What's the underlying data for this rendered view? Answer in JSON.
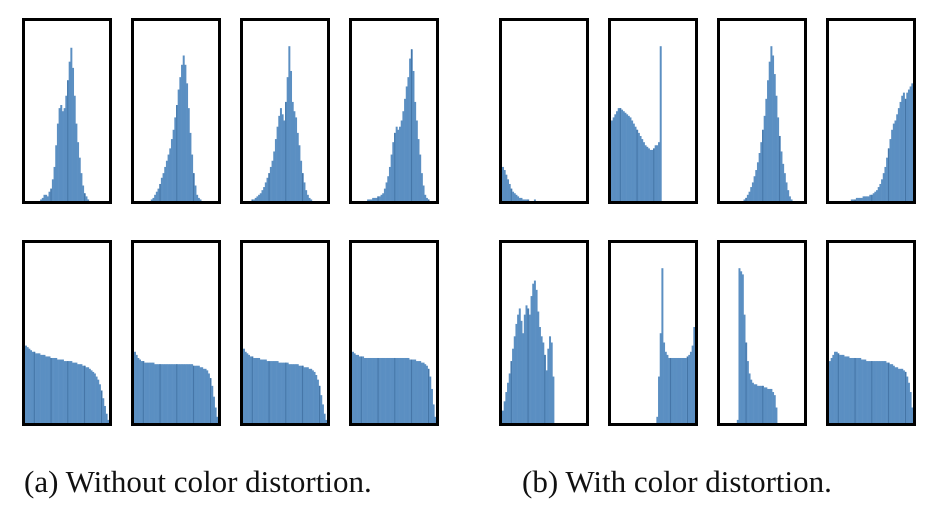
{
  "captions": {
    "a": "(a) Without color distortion.",
    "b": "(b) With color distortion."
  },
  "colors": {
    "bar": "#5b8fc2",
    "bar_edge": "#3f6fa0",
    "frame": "#000000"
  },
  "chart_data": [
    {
      "group": "a",
      "row": "top",
      "type": "bar",
      "histograms": [
        {
          "values": [
            0,
            0,
            0,
            0,
            0,
            0,
            0,
            0,
            0,
            1,
            2,
            4,
            4,
            3,
            6,
            8,
            14,
            22,
            36,
            50,
            60,
            62,
            58,
            60,
            68,
            78,
            90,
            99,
            86,
            68,
            50,
            38,
            28,
            18,
            10,
            5,
            3,
            1,
            0,
            0,
            0,
            0,
            0,
            0,
            0,
            0,
            0,
            0,
            0,
            0
          ]
        },
        {
          "values": [
            0,
            0,
            0,
            0,
            0,
            0,
            0,
            0,
            0,
            0,
            1,
            2,
            4,
            6,
            8,
            11,
            15,
            18,
            22,
            26,
            30,
            34,
            40,
            46,
            54,
            62,
            72,
            80,
            88,
            94,
            88,
            76,
            60,
            44,
            30,
            18,
            10,
            4,
            2,
            1,
            0,
            0,
            0,
            0,
            0,
            0,
            0,
            0,
            0,
            0
          ]
        },
        {
          "values": [
            0,
            0,
            0,
            0,
            0,
            1,
            1,
            2,
            3,
            4,
            5,
            7,
            9,
            12,
            15,
            18,
            22,
            26,
            32,
            40,
            48,
            55,
            60,
            56,
            52,
            64,
            80,
            100,
            84,
            64,
            58,
            54,
            44,
            36,
            26,
            18,
            12,
            7,
            4,
            2,
            1,
            0,
            0,
            0,
            0,
            0,
            0,
            0,
            0,
            0
          ]
        },
        {
          "values": [
            0,
            0,
            0,
            0,
            0,
            0,
            0,
            0,
            0,
            1,
            1,
            1,
            2,
            2,
            2,
            3,
            3,
            4,
            5,
            8,
            12,
            16,
            22,
            30,
            38,
            44,
            48,
            46,
            48,
            52,
            58,
            66,
            74,
            80,
            92,
            98,
            84,
            64,
            52,
            40,
            30,
            18,
            10,
            4,
            2,
            1,
            0,
            0,
            0,
            0
          ]
        }
      ]
    },
    {
      "group": "a",
      "row": "bottom",
      "type": "bar",
      "histograms": [
        {
          "values": [
            50,
            49,
            48,
            47,
            46,
            46,
            45,
            45,
            45,
            44,
            44,
            44,
            43,
            43,
            43,
            42,
            42,
            42,
            42,
            41,
            41,
            41,
            41,
            40,
            40,
            40,
            40,
            40,
            39,
            39,
            39,
            38,
            38,
            38,
            37,
            37,
            36,
            36,
            35,
            34,
            33,
            32,
            30,
            28,
            25,
            21,
            16,
            11,
            6,
            2
          ]
        },
        {
          "values": [
            46,
            44,
            42,
            41,
            40,
            40,
            39,
            39,
            39,
            39,
            39,
            39,
            38,
            38,
            38,
            38,
            38,
            38,
            38,
            38,
            38,
            38,
            38,
            38,
            38,
            38,
            38,
            38,
            38,
            38,
            38,
            38,
            38,
            38,
            38,
            37,
            37,
            37,
            37,
            36,
            36,
            35,
            35,
            34,
            32,
            29,
            24,
            17,
            10,
            4
          ]
        },
        {
          "values": [
            48,
            46,
            45,
            44,
            43,
            43,
            42,
            42,
            42,
            42,
            41,
            41,
            41,
            41,
            40,
            40,
            40,
            40,
            40,
            40,
            40,
            39,
            39,
            39,
            39,
            39,
            39,
            38,
            38,
            38,
            38,
            38,
            38,
            37,
            37,
            37,
            36,
            36,
            36,
            35,
            35,
            34,
            33,
            31,
            28,
            24,
            18,
            12,
            6,
            2
          ]
        },
        {
          "values": [
            46,
            45,
            44,
            44,
            43,
            43,
            43,
            42,
            42,
            42,
            42,
            42,
            42,
            42,
            42,
            42,
            42,
            42,
            42,
            42,
            42,
            42,
            42,
            42,
            42,
            42,
            42,
            42,
            42,
            42,
            42,
            42,
            42,
            42,
            41,
            41,
            41,
            41,
            40,
            40,
            40,
            39,
            39,
            38,
            37,
            35,
            30,
            22,
            12,
            4
          ]
        }
      ]
    },
    {
      "group": "b",
      "row": "top",
      "type": "bar",
      "histograms": [
        {
          "values": [
            22,
            20,
            17,
            14,
            11,
            8,
            6,
            5,
            4,
            3,
            2,
            2,
            1,
            1,
            1,
            1,
            0,
            0,
            0,
            1,
            0,
            0,
            0,
            0,
            0,
            0,
            0,
            0,
            0,
            0,
            0,
            0,
            0,
            0,
            0,
            0,
            0,
            0,
            0,
            0,
            0,
            0,
            0,
            0,
            0,
            0,
            0,
            0,
            0,
            0
          ]
        },
        {
          "values": [
            52,
            54,
            56,
            58,
            60,
            60,
            59,
            58,
            57,
            56,
            55,
            54,
            52,
            50,
            48,
            46,
            44,
            42,
            40,
            38,
            36,
            35,
            34,
            33,
            33,
            34,
            36,
            36,
            38,
            100,
            0,
            0,
            0,
            0,
            0,
            0,
            0,
            0,
            0,
            0,
            0,
            0,
            0,
            0,
            0,
            0,
            0,
            0,
            0,
            0
          ]
        },
        {
          "values": [
            0,
            0,
            0,
            0,
            0,
            0,
            0,
            0,
            0,
            0,
            0,
            0,
            0,
            0,
            1,
            2,
            4,
            6,
            9,
            12,
            16,
            20,
            25,
            31,
            38,
            46,
            55,
            66,
            78,
            90,
            100,
            94,
            82,
            68,
            54,
            42,
            32,
            24,
            18,
            12,
            7,
            3,
            1,
            0,
            0,
            0,
            0,
            0,
            0,
            0
          ]
        },
        {
          "values": [
            0,
            0,
            0,
            0,
            0,
            0,
            0,
            0,
            0,
            0,
            0,
            0,
            0,
            1,
            1,
            1,
            2,
            2,
            2,
            2,
            3,
            3,
            3,
            3,
            4,
            4,
            5,
            6,
            7,
            9,
            11,
            14,
            18,
            22,
            28,
            34,
            40,
            46,
            50,
            52,
            56,
            60,
            64,
            68,
            70,
            66,
            70,
            72,
            74,
            76
          ]
        }
      ]
    },
    {
      "group": "b",
      "row": "bottom",
      "type": "bar",
      "histograms": [
        {
          "values": [
            8,
            14,
            20,
            26,
            32,
            40,
            48,
            56,
            64,
            70,
            74,
            66,
            58,
            70,
            76,
            74,
            70,
            82,
            90,
            92,
            86,
            72,
            62,
            56,
            52,
            44,
            34,
            48,
            56,
            52,
            30,
            0,
            0,
            0,
            0,
            0,
            0,
            0,
            0,
            0,
            0,
            0,
            0,
            0,
            0,
            0,
            0,
            0,
            0,
            0
          ]
        },
        {
          "values": [
            0,
            0,
            0,
            0,
            0,
            0,
            0,
            0,
            0,
            0,
            0,
            0,
            0,
            0,
            0,
            0,
            0,
            0,
            0,
            0,
            0,
            0,
            0,
            0,
            0,
            0,
            0,
            4,
            30,
            58,
            100,
            52,
            46,
            44,
            42,
            42,
            42,
            42,
            42,
            42,
            42,
            42,
            42,
            42,
            42,
            43,
            44,
            46,
            50,
            62
          ]
        },
        {
          "values": [
            0,
            0,
            0,
            0,
            0,
            0,
            0,
            0,
            0,
            0,
            2,
            100,
            98,
            96,
            70,
            52,
            40,
            32,
            28,
            26,
            25,
            25,
            24,
            24,
            24,
            24,
            23,
            23,
            22,
            22,
            22,
            20,
            18,
            10,
            0,
            0,
            0,
            0,
            0,
            0,
            0,
            0,
            0,
            0,
            0,
            0,
            0,
            0,
            0,
            0
          ]
        },
        {
          "values": [
            40,
            42,
            44,
            46,
            46,
            45,
            44,
            44,
            44,
            43,
            43,
            43,
            42,
            42,
            42,
            42,
            42,
            42,
            42,
            41,
            41,
            41,
            40,
            40,
            40,
            40,
            40,
            40,
            40,
            40,
            40,
            40,
            40,
            40,
            39,
            39,
            38,
            38,
            37,
            36,
            36,
            35,
            35,
            35,
            34,
            33,
            30,
            26,
            20,
            10
          ]
        }
      ]
    }
  ]
}
